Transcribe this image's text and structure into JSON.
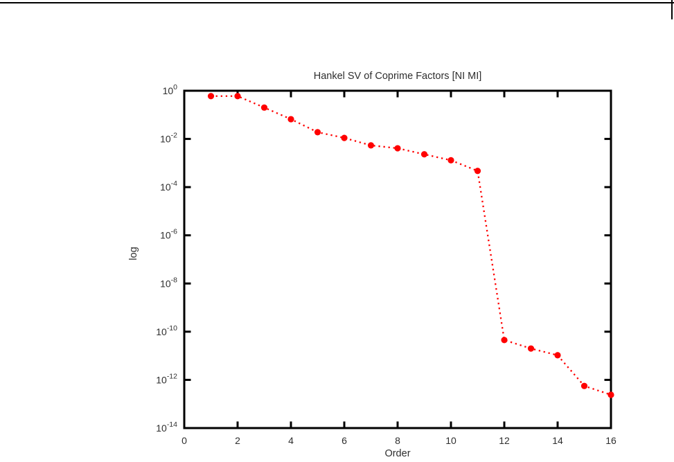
{
  "page": {
    "background_color": "#ffffff",
    "border_color": "#000000"
  },
  "chart_data": {
    "type": "line",
    "title": "Hankel SV of Coprime Factors [NI MI]",
    "xlabel": "Order",
    "ylabel": "log",
    "y_scale": "log",
    "x": [
      1,
      2,
      3,
      4,
      5,
      6,
      7,
      8,
      9,
      10,
      11,
      12,
      13,
      14,
      15,
      16
    ],
    "y": [
      0.6,
      0.6,
      0.2,
      0.066,
      0.019,
      0.011,
      0.0054,
      0.0041,
      0.0023,
      0.0013,
      0.00047,
      4.5e-11,
      2e-11,
      1.05e-11,
      5.6e-13,
      2.4e-13
    ],
    "x_ticks": [
      0,
      2,
      4,
      6,
      8,
      10,
      12,
      14,
      16
    ],
    "y_tick_exponents": [
      0,
      -2,
      -4,
      -6,
      -8,
      -10,
      -12,
      -14
    ],
    "y_tick_base": "10",
    "xlim": [
      0,
      16
    ],
    "ylim_exponents": [
      -14,
      0
    ],
    "grid": false,
    "legend": "none",
    "line_style": "dotted",
    "marker": "filled-circle",
    "series_color": "#ff0000",
    "axis_color": "#000000",
    "text_color": "#2e2e2e"
  }
}
